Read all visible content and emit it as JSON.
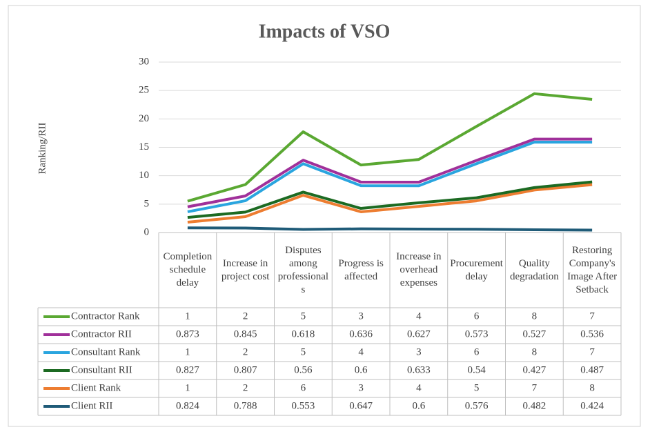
{
  "chart_data": {
    "type": "line",
    "stacked": true,
    "title": "Impacts of VSO",
    "y_label": "Ranking/RII",
    "categories": [
      "Completion schedule delay",
      "Increase in project cost",
      "Disputes among professionals",
      "Progress is affected",
      "Increase in overhead expenses",
      "Procurement delay",
      "Quality degradation",
      "Restoring Company's Image After Setback"
    ],
    "series": [
      {
        "name": "Contractor Rank",
        "color": "#5aa832",
        "values": [
          1,
          2,
          5,
          3,
          4,
          6,
          8,
          7
        ]
      },
      {
        "name": "Contractor RII",
        "color": "#a0309a",
        "values": [
          0.873,
          0.845,
          0.618,
          0.636,
          0.627,
          0.573,
          0.527,
          0.536
        ]
      },
      {
        "name": "Consultant Rank",
        "color": "#2aa5df",
        "values": [
          1,
          2,
          5,
          4,
          3,
          6,
          8,
          7
        ]
      },
      {
        "name": "Consultant RII",
        "color": "#1c6a22",
        "values": [
          0.827,
          0.807,
          0.56,
          0.6,
          0.633,
          0.54,
          0.427,
          0.487
        ]
      },
      {
        "name": "Client Rank",
        "color": "#ed7d31",
        "values": [
          1,
          2,
          6,
          3,
          4,
          5,
          7,
          8
        ]
      },
      {
        "name": "Client RII",
        "color": "#1f5b78",
        "values": [
          0.824,
          0.788,
          0.553,
          0.647,
          0.6,
          0.576,
          0.482,
          0.424
        ]
      }
    ],
    "ylim": [
      0,
      30
    ],
    "yticks": [
      0,
      5,
      10,
      15,
      20,
      25,
      30
    ],
    "grid": true,
    "data_table": true
  }
}
